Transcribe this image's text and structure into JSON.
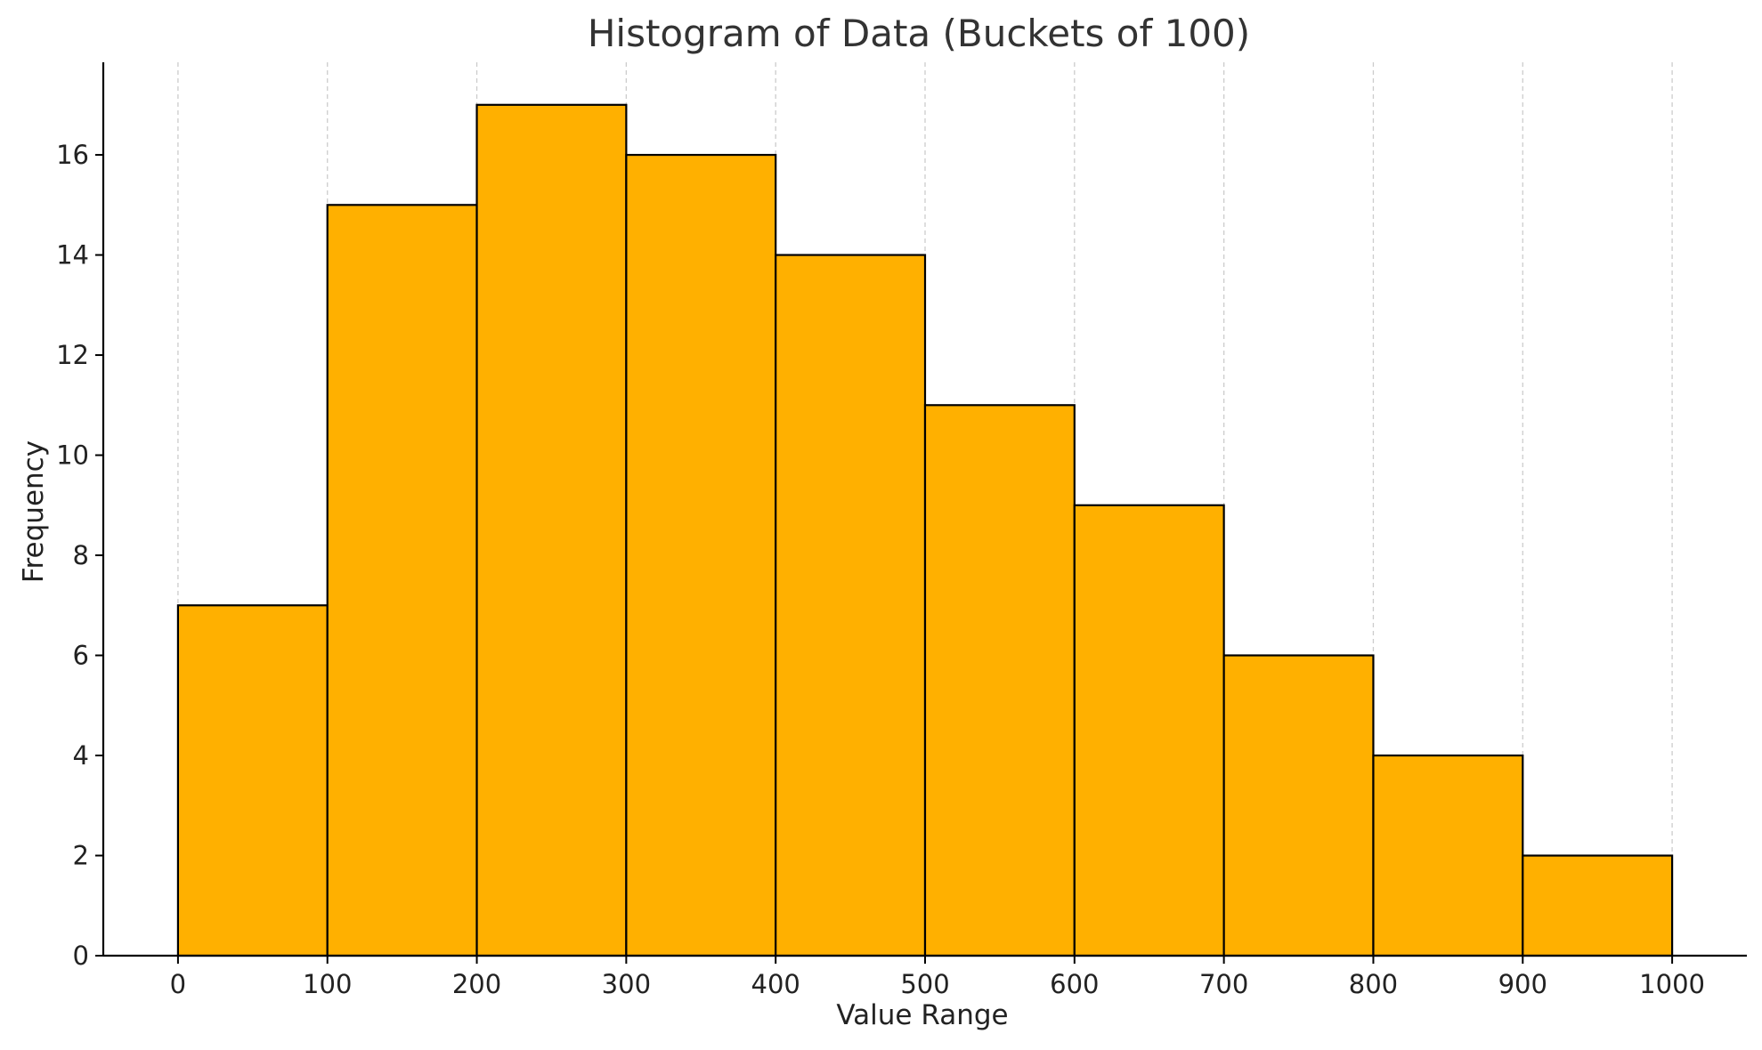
{
  "chart_data": {
    "type": "bar",
    "title": "Histogram of Data (Buckets of 100)",
    "xlabel": "Value Range",
    "ylabel": "Frequency",
    "bin_edges": [
      0,
      100,
      200,
      300,
      400,
      500,
      600,
      700,
      800,
      900,
      1000
    ],
    "values": [
      7,
      15,
      17,
      16,
      14,
      11,
      9,
      6,
      4,
      2
    ],
    "x_ticks": [
      0,
      100,
      200,
      300,
      400,
      500,
      600,
      700,
      800,
      900,
      1000
    ],
    "x_tick_labels": [
      "0",
      "100",
      "200",
      "300",
      "400",
      "500",
      "600",
      "700",
      "800",
      "900",
      "1000"
    ],
    "y_ticks": [
      0,
      2,
      4,
      6,
      8,
      10,
      12,
      14,
      16
    ],
    "y_tick_labels": [
      "0",
      "2",
      "4",
      "6",
      "8",
      "10",
      "12",
      "14",
      "16"
    ],
    "xlim": [
      -50,
      1050
    ],
    "ylim": [
      0,
      17.85
    ],
    "grid": "vertical dashed",
    "legend": "none",
    "colors": {
      "bar_fill": "#FFB000",
      "bar_edge": "#000000",
      "grid": "#cccccc",
      "axis": "#000000"
    }
  }
}
